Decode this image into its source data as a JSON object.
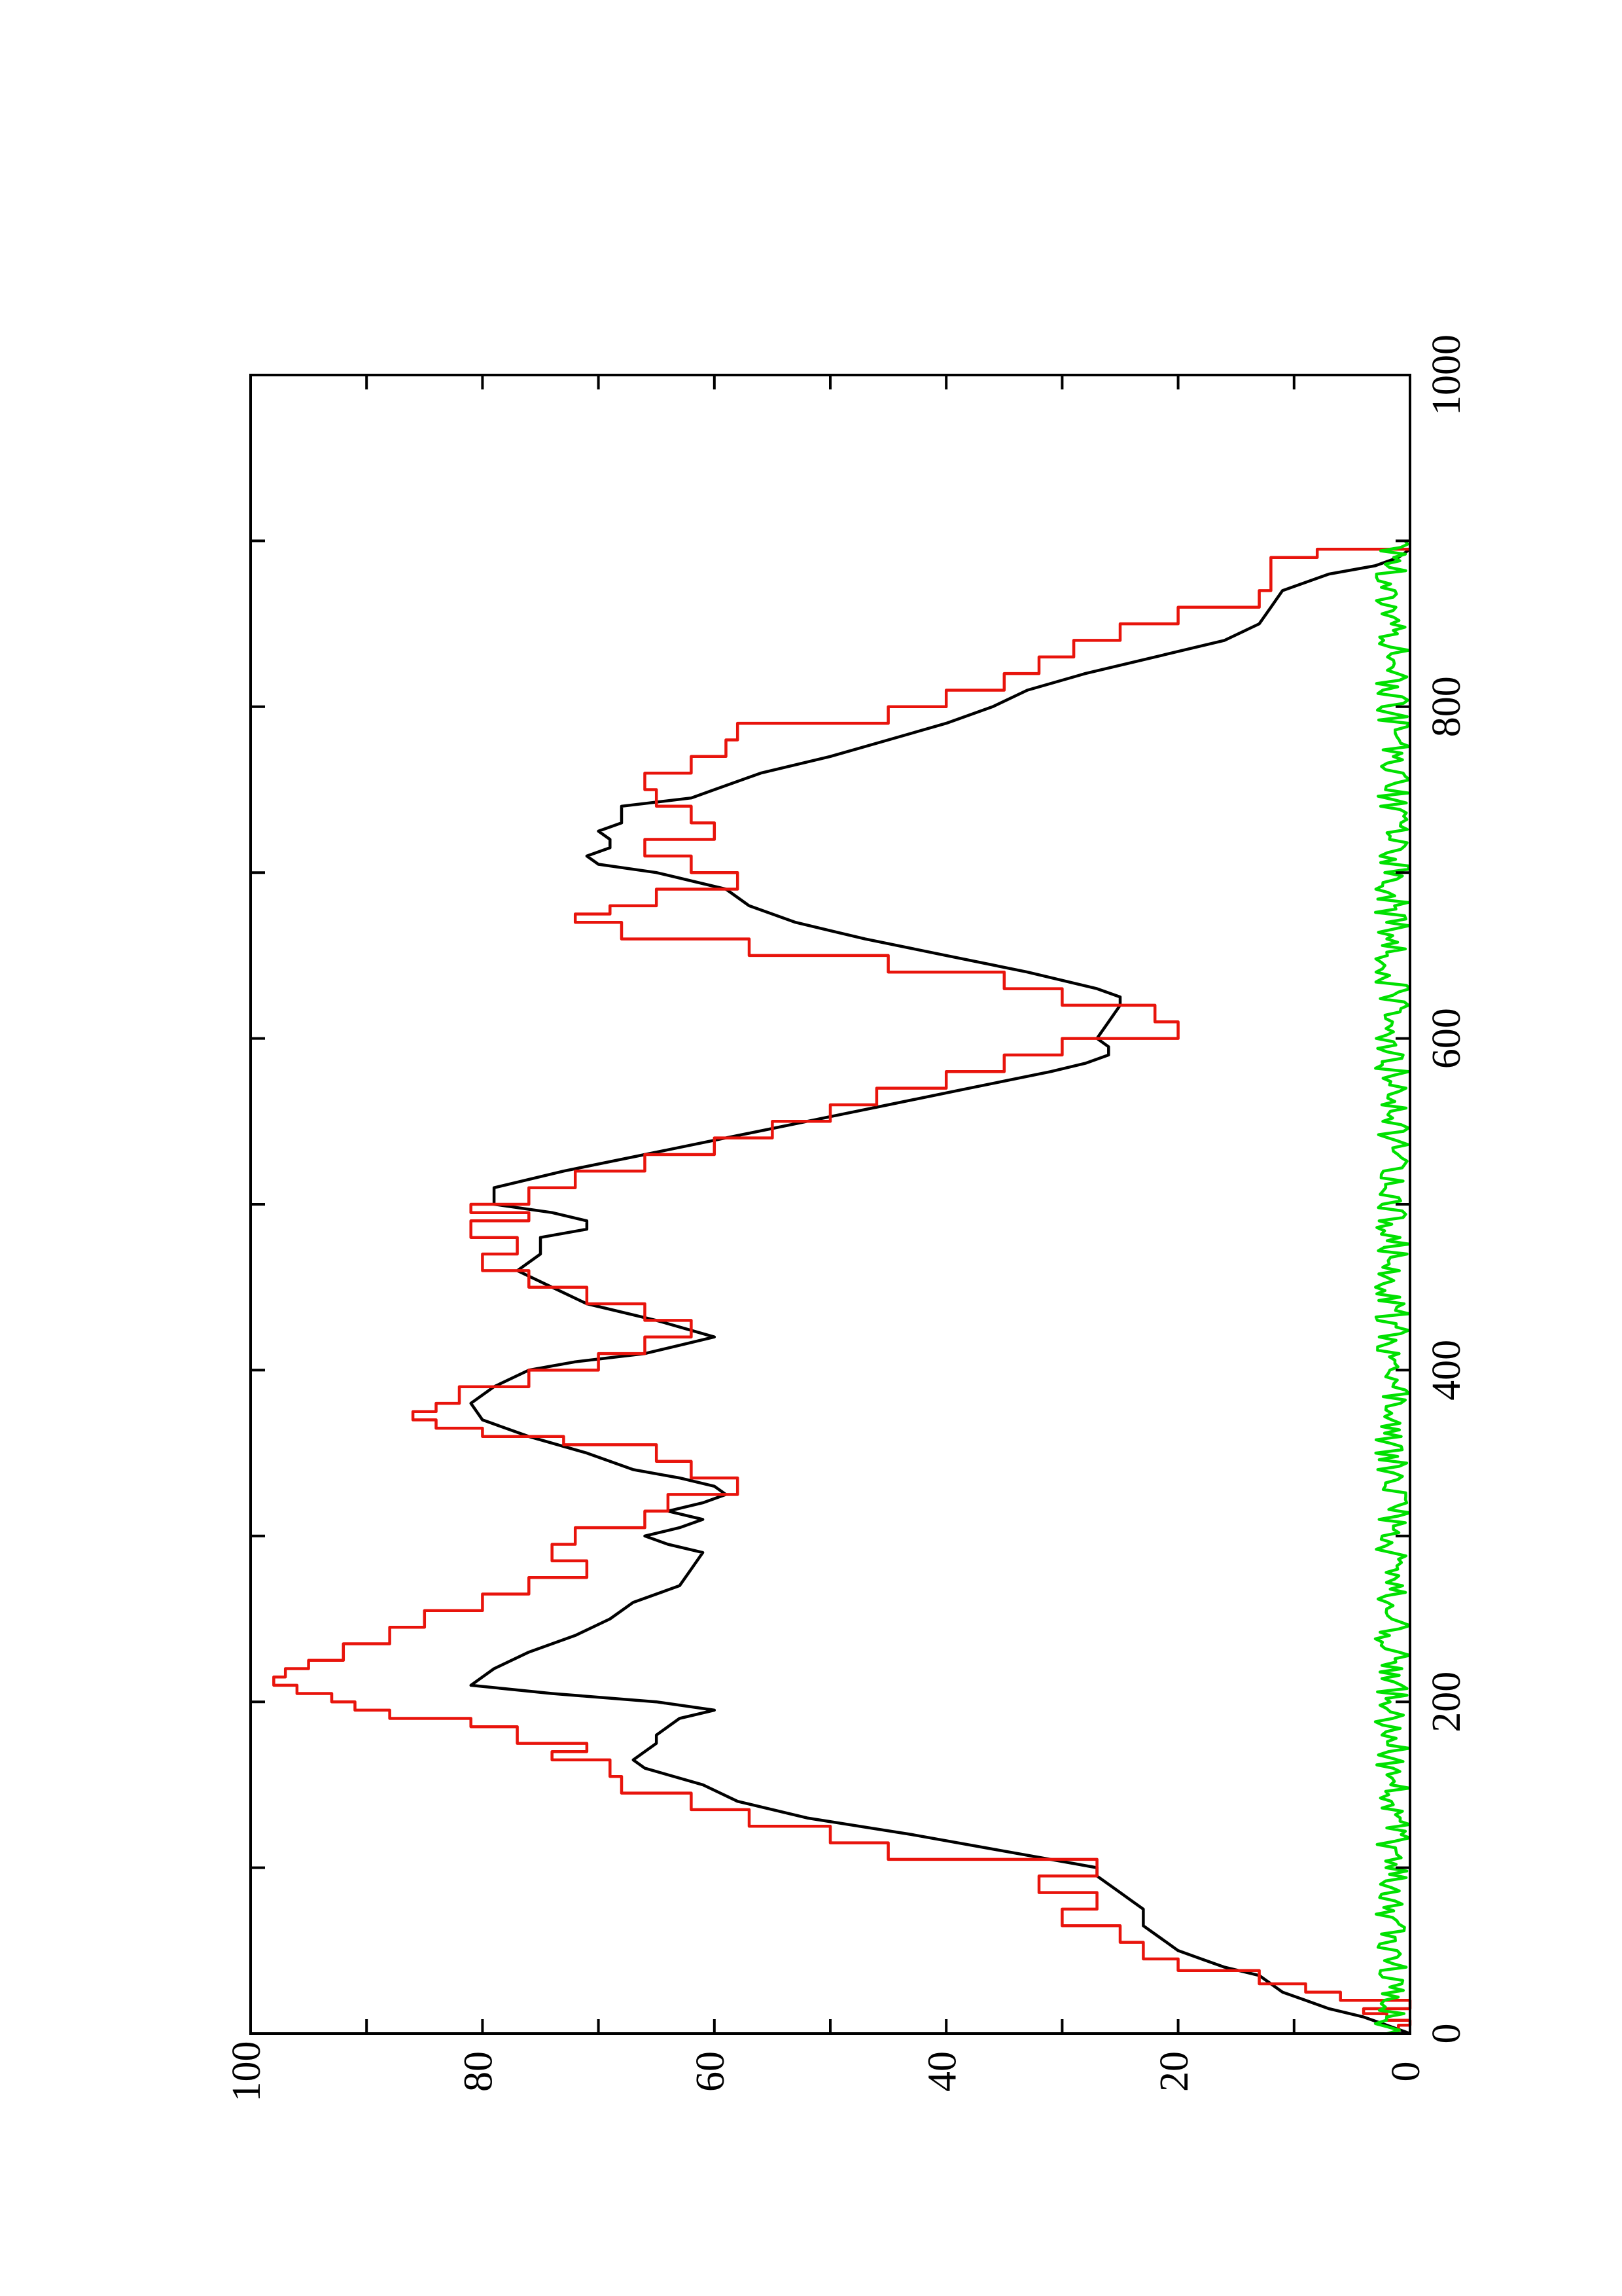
{
  "chart_data": {
    "type": "line",
    "orientation": "rotated 90 degrees counter-clockwise",
    "title": "",
    "xlabel": "",
    "ylabel": "",
    "xlim": [
      0,
      1000
    ],
    "ylim": [
      0,
      100
    ],
    "x_ticks": [
      0,
      200,
      400,
      600,
      800,
      1000
    ],
    "x_minor_ticks": [
      100,
      300,
      500,
      700,
      900
    ],
    "y_ticks": [
      0,
      20,
      40,
      60,
      80,
      100
    ],
    "y_minor_ticks": [
      10,
      30,
      50,
      70,
      90
    ],
    "grid": false,
    "legend": "none",
    "series": [
      {
        "color": "#000000",
        "style": "smooth",
        "x": [
          0,
          5,
          10,
          15,
          20,
          25,
          30,
          35,
          40,
          45,
          50,
          55,
          60,
          65,
          70,
          75,
          80,
          85,
          90,
          95,
          100,
          110,
          120,
          130,
          140,
          150,
          160,
          165,
          170,
          175,
          180,
          185,
          190,
          195,
          200,
          205,
          210,
          215,
          220,
          230,
          240,
          250,
          260,
          270,
          280,
          290,
          295,
          300,
          305,
          310,
          315,
          320,
          325,
          330,
          335,
          340,
          350,
          360,
          370,
          380,
          390,
          400,
          405,
          410,
          415,
          420,
          430,
          440,
          450,
          460,
          470,
          480,
          485,
          490,
          495,
          500,
          510,
          520,
          530,
          540,
          550,
          560,
          570,
          580,
          585,
          590,
          595,
          600,
          610,
          620,
          625,
          630,
          640,
          650,
          660,
          670,
          680,
          690,
          700,
          705,
          710,
          715,
          720,
          725,
          730,
          735,
          740,
          745,
          750,
          760,
          770,
          780,
          790,
          800,
          810,
          820,
          830,
          840,
          850,
          860,
          870,
          880,
          885,
          890,
          895
        ],
        "y": [
          0,
          2,
          4,
          7,
          9,
          11,
          12,
          13,
          16,
          18,
          20,
          21,
          22,
          23,
          23,
          23,
          24,
          25,
          26,
          27,
          27,
          35,
          43,
          52,
          58,
          61,
          66,
          67,
          66,
          65,
          65,
          64,
          63,
          60,
          65,
          74,
          81,
          80,
          79,
          76,
          72,
          69,
          67,
          63,
          62,
          61,
          64,
          66,
          63,
          61,
          64,
          61,
          59,
          60,
          63,
          67,
          71,
          76,
          80,
          81,
          79,
          76,
          72,
          66,
          63,
          60,
          65,
          71,
          74,
          77,
          75,
          75,
          71,
          71,
          74,
          79,
          79,
          73,
          66,
          59,
          52,
          45,
          38,
          31,
          28,
          26,
          26,
          27,
          26,
          25,
          25,
          27,
          33,
          40,
          47,
          53,
          57,
          59,
          65,
          70,
          71,
          69,
          69,
          70,
          68,
          68,
          68,
          62,
          60,
          56,
          50,
          45,
          40,
          36,
          33,
          28,
          22,
          16,
          13,
          12,
          11,
          7,
          3,
          1,
          0
        ]
      },
      {
        "color": "#e8140c",
        "style": "step",
        "x": [
          0,
          5,
          8,
          12,
          15,
          20,
          25,
          30,
          38,
          45,
          55,
          65,
          75,
          85,
          95,
          105,
          115,
          125,
          135,
          145,
          155,
          165,
          170,
          175,
          185,
          190,
          195,
          200,
          205,
          210,
          215,
          220,
          225,
          235,
          245,
          255,
          265,
          275,
          285,
          295,
          305,
          315,
          325,
          335,
          345,
          355,
          360,
          365,
          370,
          375,
          380,
          390,
          400,
          410,
          420,
          430,
          440,
          450,
          460,
          470,
          480,
          490,
          495,
          500,
          510,
          520,
          530,
          540,
          550,
          560,
          570,
          580,
          590,
          600,
          610,
          620,
          630,
          640,
          650,
          660,
          670,
          675,
          680,
          690,
          700,
          710,
          720,
          730,
          740,
          750,
          760,
          770,
          780,
          790,
          800,
          810,
          820,
          830,
          840,
          850,
          860,
          870,
          880,
          890,
          895
        ],
        "y": [
          1,
          0,
          2,
          4,
          0,
          6,
          9,
          13,
          20,
          23,
          25,
          30,
          27,
          32,
          27,
          45,
          50,
          57,
          62,
          68,
          69,
          74,
          71,
          77,
          81,
          88,
          91,
          93,
          96,
          98,
          97,
          95,
          92,
          88,
          85,
          80,
          76,
          71,
          74,
          72,
          66,
          64,
          58,
          62,
          65,
          73,
          80,
          84,
          86,
          84,
          82,
          76,
          70,
          66,
          62,
          66,
          71,
          76,
          80,
          77,
          81,
          76,
          81,
          76,
          72,
          66,
          60,
          55,
          50,
          46,
          40,
          35,
          30,
          20,
          22,
          30,
          35,
          45,
          57,
          68,
          72,
          69,
          65,
          58,
          62,
          66,
          60,
          62,
          65,
          66,
          62,
          59,
          58,
          45,
          40,
          35,
          32,
          29,
          25,
          20,
          13,
          12,
          12,
          8,
          0
        ]
      },
      {
        "color": "#00e000",
        "style": "noise",
        "x_range": [
          0,
          900
        ],
        "y_range": [
          0,
          3
        ]
      }
    ]
  }
}
